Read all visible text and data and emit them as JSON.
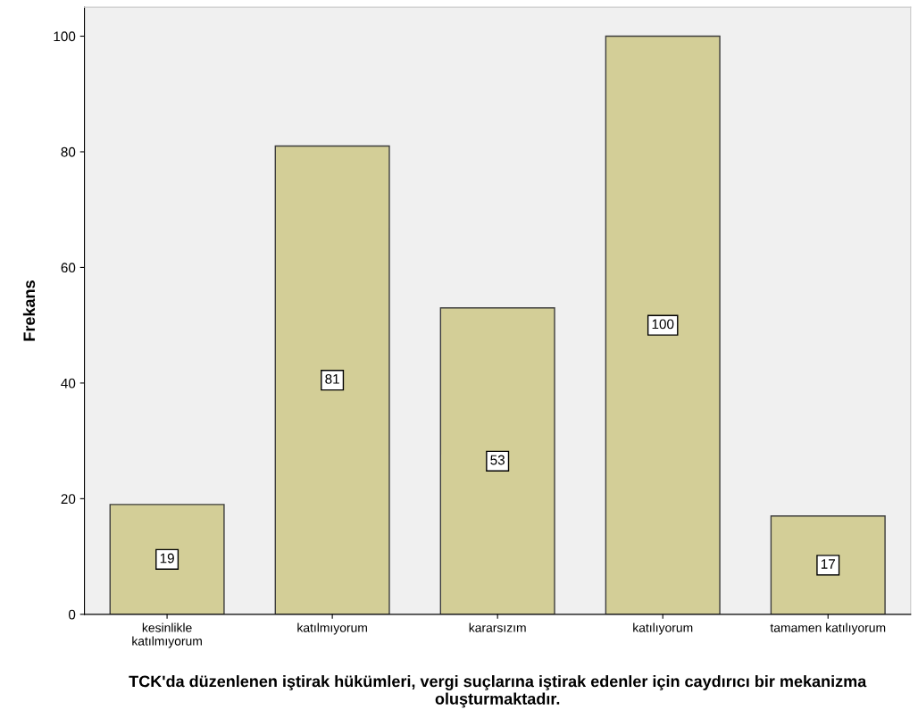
{
  "chart_data": {
    "type": "bar",
    "categories": [
      "kesinlikle\nkatılmıyorum",
      "katılmıyorum",
      "kararsızım",
      "katılıyorum",
      "tamamen katılıyorum"
    ],
    "values": [
      19,
      81,
      53,
      100,
      17
    ],
    "color": "#d3ce97",
    "xlabel": "TCK'da düzenlenen iştirak hükümleri, vergi suçlarına iştirak edenler için caydırıcı bir mekanizma oluşturmaktadır.",
    "ylabel": "Frekans",
    "ylim": [
      0,
      105
    ],
    "yticks": [
      0,
      20,
      40,
      60,
      80,
      100
    ],
    "data_labels": true,
    "grid": false,
    "legend": false
  }
}
